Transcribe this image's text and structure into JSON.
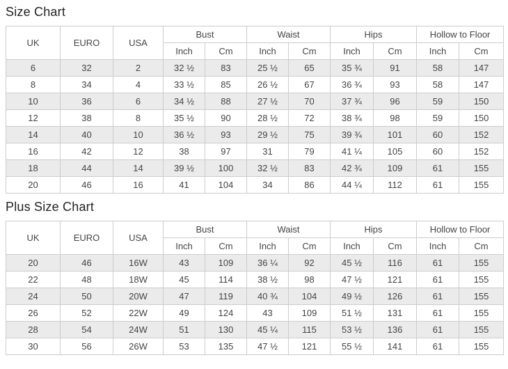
{
  "colors": {
    "text": "#444444",
    "title": "#222222",
    "border": "#cccccc",
    "stripe": "#ebebeb",
    "background": "#ffffff"
  },
  "size_chart": {
    "title": "Size Chart",
    "header": {
      "uk": "UK",
      "euro": "EURO",
      "usa": "USA",
      "groups": [
        "Bust",
        "Waist",
        "Hips",
        "Hollow to Floor"
      ],
      "units": [
        "Inch",
        "Cm"
      ]
    },
    "rows": [
      [
        "6",
        "32",
        "2",
        "32 ½",
        "83",
        "25 ½",
        "65",
        "35 ¾",
        "91",
        "58",
        "147"
      ],
      [
        "8",
        "34",
        "4",
        "33 ½",
        "85",
        "26 ½",
        "67",
        "36 ¾",
        "93",
        "58",
        "147"
      ],
      [
        "10",
        "36",
        "6",
        "34 ½",
        "88",
        "27 ½",
        "70",
        "37 ¾",
        "96",
        "59",
        "150"
      ],
      [
        "12",
        "38",
        "8",
        "35 ½",
        "90",
        "28 ½",
        "72",
        "38 ¾",
        "98",
        "59",
        "150"
      ],
      [
        "14",
        "40",
        "10",
        "36 ½",
        "93",
        "29 ½",
        "75",
        "39 ¾",
        "101",
        "60",
        "152"
      ],
      [
        "16",
        "42",
        "12",
        "38",
        "97",
        "31",
        "79",
        "41 ¼",
        "105",
        "60",
        "152"
      ],
      [
        "18",
        "44",
        "14",
        "39 ½",
        "100",
        "32 ½",
        "83",
        "42 ¾",
        "109",
        "61",
        "155"
      ],
      [
        "20",
        "46",
        "16",
        "41",
        "104",
        "34",
        "86",
        "44 ¼",
        "112",
        "61",
        "155"
      ]
    ]
  },
  "plus_size_chart": {
    "title": "Plus Size Chart",
    "header": {
      "uk": "UK",
      "euro": "EURO",
      "usa": "USA",
      "groups": [
        "Bust",
        "Waist",
        "Hips",
        "Hollow to Floor"
      ],
      "units": [
        "Inch",
        "Cm"
      ]
    },
    "rows": [
      [
        "20",
        "46",
        "16W",
        "43",
        "109",
        "36 ¼",
        "92",
        "45 ½",
        "116",
        "61",
        "155"
      ],
      [
        "22",
        "48",
        "18W",
        "45",
        "114",
        "38 ½",
        "98",
        "47 ½",
        "121",
        "61",
        "155"
      ],
      [
        "24",
        "50",
        "20W",
        "47",
        "119",
        "40 ¾",
        "104",
        "49 ½",
        "126",
        "61",
        "155"
      ],
      [
        "26",
        "52",
        "22W",
        "49",
        "124",
        "43",
        "109",
        "51 ½",
        "131",
        "61",
        "155"
      ],
      [
        "28",
        "54",
        "24W",
        "51",
        "130",
        "45 ¼",
        "115",
        "53 ½",
        "136",
        "61",
        "155"
      ],
      [
        "30",
        "56",
        "26W",
        "53",
        "135",
        "47 ½",
        "121",
        "55 ½",
        "141",
        "61",
        "155"
      ]
    ]
  }
}
